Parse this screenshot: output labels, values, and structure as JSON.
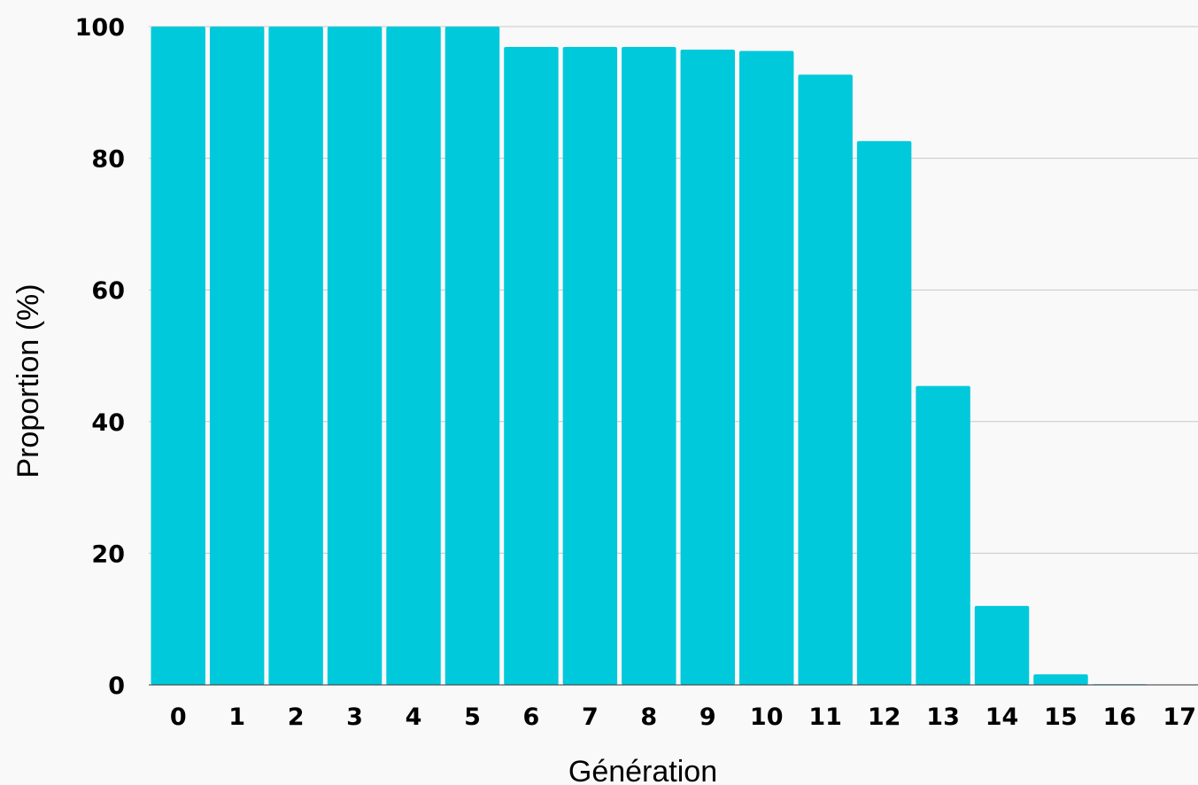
{
  "chart_data": {
    "type": "bar",
    "categories": [
      "0",
      "1",
      "2",
      "3",
      "4",
      "5",
      "6",
      "7",
      "8",
      "9",
      "10",
      "11",
      "12",
      "13",
      "14",
      "15",
      "16",
      "17"
    ],
    "values": [
      100,
      100,
      100,
      100,
      100,
      100,
      96.9,
      96.9,
      96.9,
      96.5,
      96.3,
      92.7,
      82.6,
      45.4,
      12.0,
      1.6,
      0.1,
      0
    ],
    "xlabel": "Génération",
    "ylabel": "Proportion (%)",
    "ylim": [
      0,
      100
    ],
    "yticks": [
      0,
      20,
      40,
      60,
      80,
      100
    ],
    "grid": true,
    "bar_color": "#00c9db",
    "background_color": "#f9f9f9"
  }
}
